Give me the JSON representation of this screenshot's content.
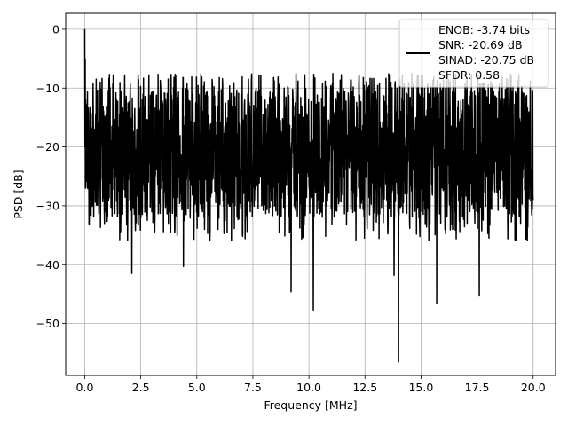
{
  "chart_data": {
    "type": "line",
    "title": "",
    "xlabel": "Frequency [MHz]",
    "ylabel": "PSD [dB]",
    "xlim": [
      -0.85,
      21
    ],
    "ylim": [
      -58.8,
      2.7
    ],
    "grid": true,
    "legend_placement": "top-right",
    "xticks": [
      0,
      2.5,
      5,
      7.5,
      10,
      12.5,
      15,
      17.5,
      20
    ],
    "xtick_labels": [
      "0.0",
      "2.5",
      "5.0",
      "7.5",
      "10.0",
      "12.5",
      "15.0",
      "17.5",
      "20.0"
    ],
    "yticks": [
      0,
      -10,
      -20,
      -30,
      -40,
      -50
    ],
    "ytick_labels": [
      "0",
      "−10",
      "−20",
      "−30",
      "−40",
      "−50"
    ],
    "series": [
      {
        "name": "ENOB: -3.74 bits\nSNR: -20.69 dB\nSINAD: -20.75 dB\nSFDR: 0.58",
        "color": "#000000",
        "x_range": [
          0,
          20
        ],
        "points": 2000,
        "typical_range_db": [
          -32,
          -10
        ],
        "peak_db": 0,
        "notable_dips": [
          {
            "x": 2.1,
            "y": -41.5
          },
          {
            "x": 4.4,
            "y": -40.3
          },
          {
            "x": 9.2,
            "y": -44.6
          },
          {
            "x": 10.2,
            "y": -47.7
          },
          {
            "x": 13.8,
            "y": -41.8
          },
          {
            "x": 14.0,
            "y": -56.5
          },
          {
            "x": 15.7,
            "y": -46.6
          },
          {
            "x": 17.6,
            "y": -45.3
          }
        ]
      }
    ]
  },
  "legend": {
    "lines": [
      "ENOB: -3.74 bits",
      "SNR: -20.69 dB",
      "SINAD: -20.75 dB",
      "SFDR: 0.58"
    ]
  }
}
